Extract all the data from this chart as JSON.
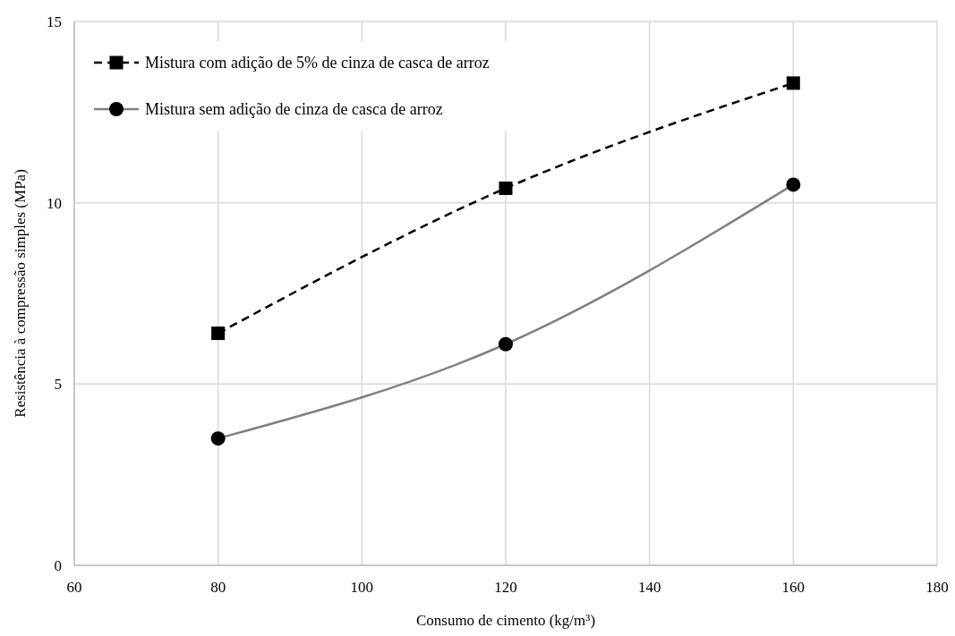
{
  "chart_data": {
    "type": "line",
    "xlabel": "Consumo de cimento (kg/m³)",
    "ylabel": "Resistência à compressão simples (MPa)",
    "x": [
      80,
      120,
      160
    ],
    "xlim": [
      60,
      180
    ],
    "xticks": [
      60,
      80,
      100,
      120,
      140,
      160,
      180
    ],
    "ylim": [
      0,
      15
    ],
    "yticks": [
      0,
      5,
      10,
      15
    ],
    "grid": true,
    "legend": "top left",
    "series": [
      {
        "name": "Mistura com adição de 5% de cinza de casca de arroz",
        "color": "#000000",
        "colors": [
          "#000000",
          "#000000",
          "#000000"
        ],
        "values": [
          6.4,
          10.4,
          13.3
        ],
        "marker": "square",
        "line_style": "dashed"
      },
      {
        "name": "Mistura sem adição de cinza de casca de arroz",
        "color": "#808080",
        "colors": [
          "#000000",
          "#000000",
          "#000000"
        ],
        "values": [
          3.5,
          6.1,
          10.5
        ],
        "marker": "circle",
        "line_style": "solid"
      }
    ]
  }
}
